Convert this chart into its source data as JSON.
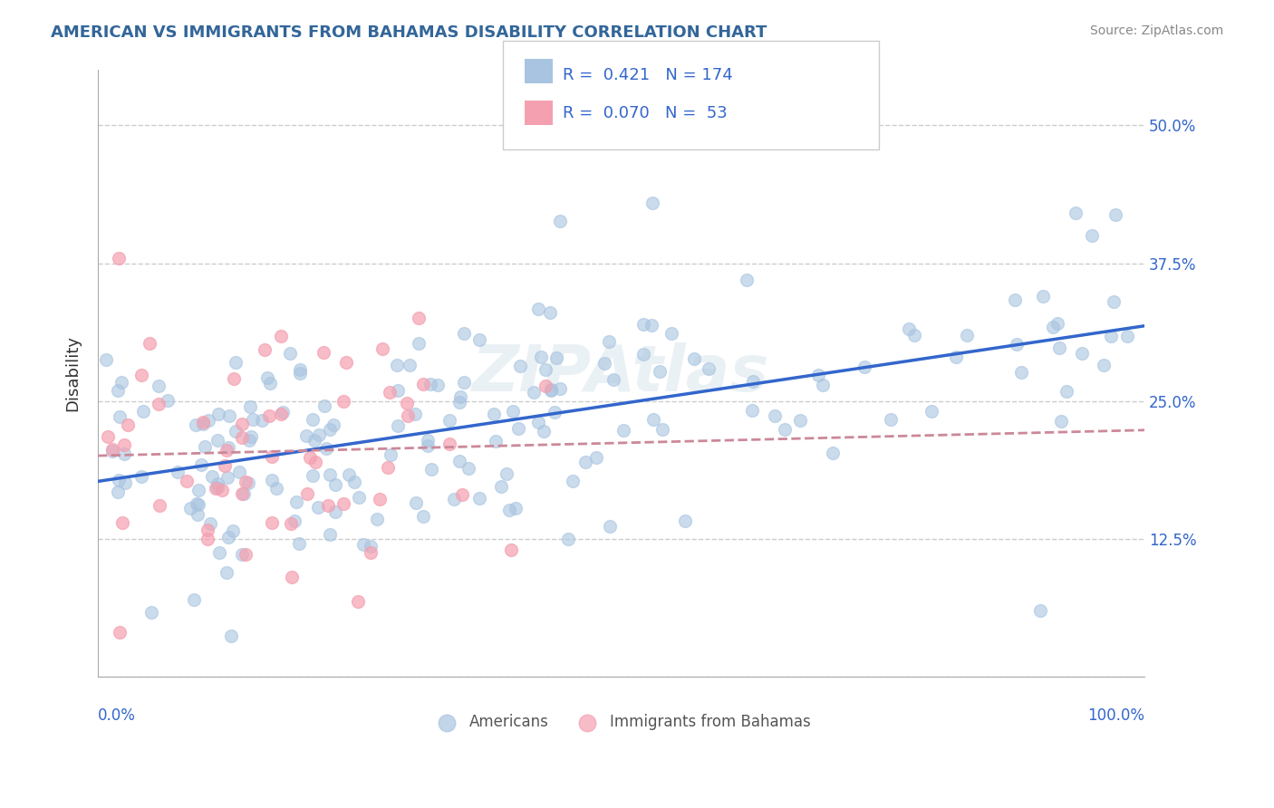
{
  "title": "AMERICAN VS IMMIGRANTS FROM BAHAMAS DISABILITY CORRELATION CHART",
  "source": "Source: ZipAtlas.com",
  "ylabel": "Disability",
  "xmin": 0.0,
  "xmax": 1.0,
  "ymin": 0.0,
  "ymax": 0.55,
  "yticks": [
    0.0,
    0.125,
    0.25,
    0.375,
    0.5
  ],
  "ytick_labels": [
    "",
    "12.5%",
    "25.0%",
    "37.5%",
    "50.0%"
  ],
  "R_americans": 0.421,
  "N_americans": 174,
  "R_bahamas": 0.07,
  "N_bahamas": 53,
  "legend_label_americans": "Americans",
  "legend_label_bahamas": "Immigrants from Bahamas",
  "color_americans": "#a8c4e0",
  "color_bahamas": "#f4a0b0",
  "line_color_americans": "#3366cc",
  "line_color_bahamas": "#cc8899",
  "title_color": "#336699",
  "legend_text_color": "#3366cc",
  "background_color": "#ffffff",
  "grid_color": "#cccccc"
}
